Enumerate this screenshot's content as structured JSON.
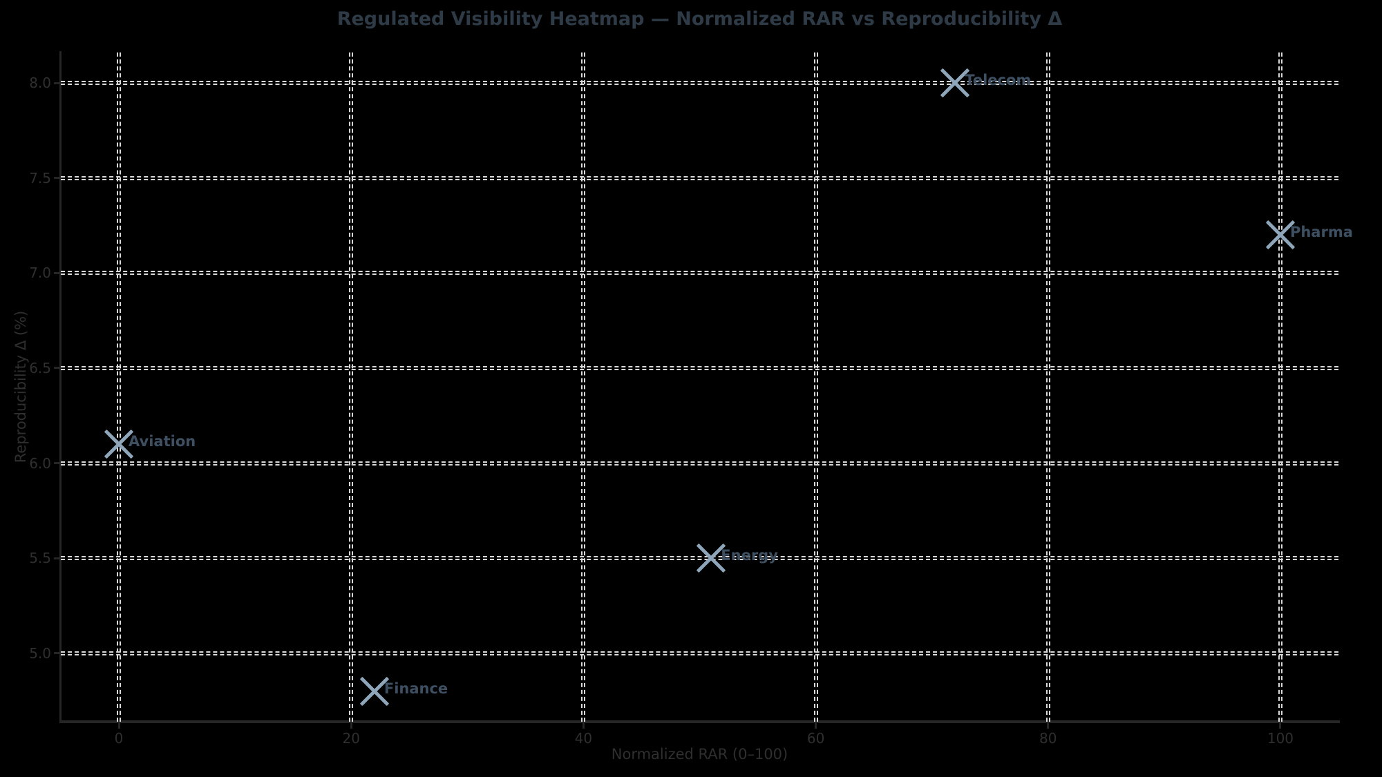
{
  "chart_data": {
    "type": "scatter",
    "title": "Regulated Visibility Heatmap — Normalized RAR vs Reproducibility Δ",
    "xlabel": "Normalized RAR (0–100)",
    "ylabel": "Reproducibility Δ (%)",
    "xlim": [
      -5,
      105
    ],
    "ylim": [
      4.64,
      8.16
    ],
    "xticks": [
      0,
      20,
      40,
      60,
      80,
      100
    ],
    "yticks": [
      5.0,
      5.5,
      6.0,
      6.5,
      7.0,
      7.5,
      8.0
    ],
    "grid": true,
    "grid_style": "dashed",
    "legend_position": "none",
    "marker": "x",
    "points": [
      {
        "label": "Aviation",
        "x": 0,
        "y": 6.1
      },
      {
        "label": "Finance",
        "x": 22,
        "y": 4.8
      },
      {
        "label": "Energy",
        "x": 51,
        "y": 5.5
      },
      {
        "label": "Telecom",
        "x": 72,
        "y": 8.0
      },
      {
        "label": "Pharma",
        "x": 100,
        "y": 7.2
      }
    ],
    "colors": {
      "background": "#000000",
      "title": "#2e3b47",
      "axis_text": "#2f2f2f",
      "spine": "#262626",
      "grid": "#d9d9d9",
      "marker": "#8fa6ba",
      "point_label": "#3d4f61"
    }
  }
}
